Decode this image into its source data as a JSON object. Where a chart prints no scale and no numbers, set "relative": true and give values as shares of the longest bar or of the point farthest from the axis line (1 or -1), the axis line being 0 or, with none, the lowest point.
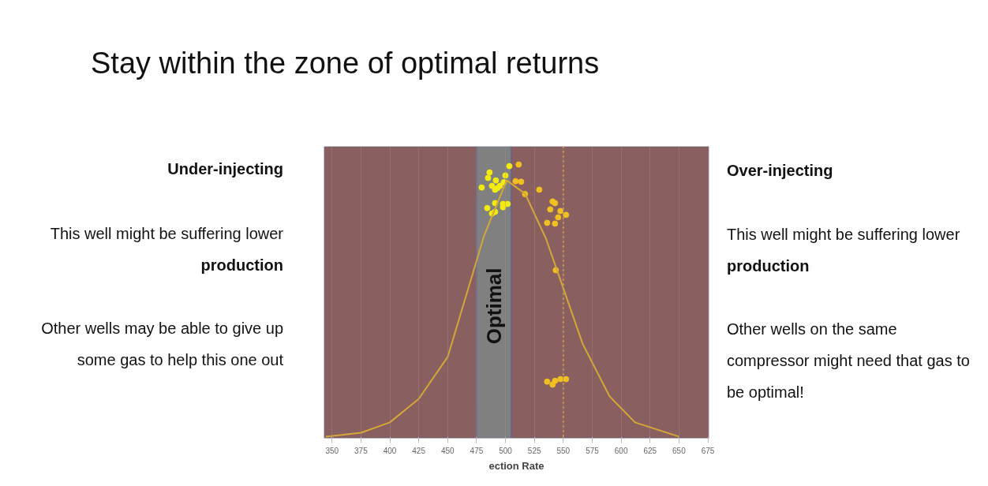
{
  "chart_data": {
    "type": "scatter",
    "title": "Stay within the zone of optimal returns",
    "xlabel": "ection Rate",
    "relative": true,
    "xlim": [
      343,
      676
    ],
    "xticks": [
      350,
      375,
      400,
      425,
      450,
      475,
      500,
      525,
      550,
      575,
      600,
      625,
      650,
      675
    ],
    "tick_labels": "x",
    "grid": "x",
    "marker": "circle",
    "series": [
      {
        "color": "#f2ea10",
        "x": [
          503.3,
          486.2,
          499.9,
          484.9,
          491.7,
          495.1,
          488.3,
          479.4,
          498.5,
          493.1,
          491.0,
          491.0,
          497.8,
          501.8,
          484.2,
          497.8,
          488.3,
          491.0
        ],
        "values": [
          0.994,
          0.971,
          0.96,
          0.951,
          0.942,
          0.922,
          0.922,
          0.916,
          0.935,
          0.914,
          0.908,
          0.859,
          0.856,
          0.856,
          0.841,
          0.844,
          0.821,
          0.827
        ]
      },
      {
        "color": "#f0c020",
        "x": [
          511.4,
          508.7,
          513.5,
          516.9,
          529.2,
          542.8,
          538.7,
          547.5,
          552.3,
          545.5,
          536.0,
          542.8,
          540.7,
          543.5,
          536.0,
          542.8,
          547.5,
          552.3,
          540.7
        ],
        "values": [
          1.0,
          0.939,
          0.937,
          0.892,
          0.908,
          0.859,
          0.836,
          0.83,
          0.816,
          0.807,
          0.787,
          0.784,
          0.865,
          0.614,
          0.207,
          0.21,
          0.216,
          0.216,
          0.196
        ]
      },
      {
        "type": "line",
        "marker": "none",
        "color": "#d4a838",
        "x": [
          344.5,
          375,
          400,
          425,
          450,
          481.5,
          501,
          517,
          535,
          550,
          566.6,
          590,
          612,
          650
        ],
        "values": [
          0.006,
          0.02,
          0.058,
          0.144,
          0.297,
          0.74,
          0.942,
          0.893,
          0.729,
          0.548,
          0.346,
          0.153,
          0.058,
          0.006
        ]
      }
    ],
    "ref_lines": [
      {
        "axis": "x",
        "value": 550,
        "color": "#d4a838",
        "line_style": "dotted"
      }
    ],
    "bands": [
      {
        "axis": "x",
        "from": 343,
        "to": 475,
        "color": "#8a5f5f"
      },
      {
        "axis": "x",
        "from": 475,
        "to": 505,
        "color": "#808080",
        "label": "Optimal"
      },
      {
        "axis": "x",
        "from": 505,
        "to": 676,
        "color": "#8a5f5f"
      }
    ],
    "annotations": [
      "Under-injecting",
      "This well might be suffering lower",
      "production",
      "Other wells may be able to give up",
      "some gas to help this one out",
      "Over-injecting",
      "This well might be suffering lower",
      "production",
      "Other wells on the same",
      "compressor might need that gas to",
      "be optimal!"
    ]
  }
}
